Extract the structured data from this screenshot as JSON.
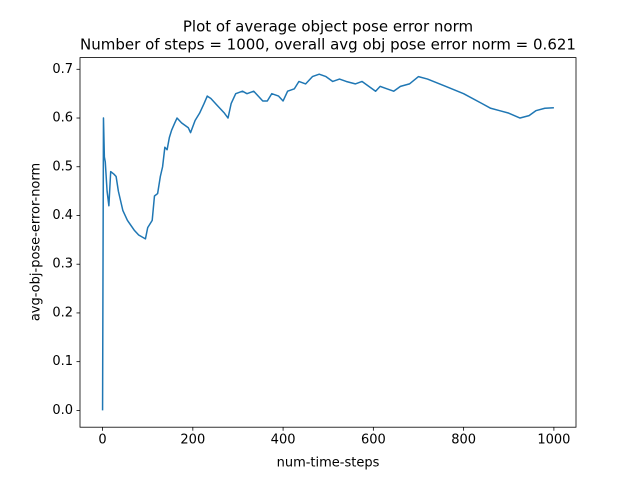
{
  "chart_data": {
    "type": "line",
    "title": "Plot of average object pose error norm",
    "subtitle": "Number of steps = 1000, overall avg obj pose error norm = 0.621",
    "x_label": "num-time-steps",
    "y_label": "avg-obj-pose-error-norm",
    "x": [
      0,
      2,
      4,
      6,
      10,
      14,
      18,
      25,
      30,
      35,
      45,
      55,
      70,
      80,
      95,
      100,
      110,
      115,
      122,
      128,
      133,
      138,
      143,
      148,
      153,
      160,
      165,
      175,
      190,
      195,
      205,
      215,
      225,
      232,
      240,
      255,
      270,
      278,
      285,
      295,
      310,
      320,
      335,
      345,
      355,
      365,
      375,
      390,
      400,
      410,
      425,
      435,
      450,
      465,
      480,
      495,
      510,
      525,
      540,
      560,
      575,
      590,
      605,
      615,
      630,
      645,
      660,
      680,
      700,
      720,
      760,
      800,
      840,
      860,
      880,
      900,
      925,
      945,
      960,
      980,
      1000
    ],
    "series": [
      {
        "name": "avg-obj-pose-error-norm",
        "color": "#1f77b4",
        "values": [
          0.0,
          0.6,
          0.52,
          0.51,
          0.45,
          0.42,
          0.49,
          0.485,
          0.48,
          0.45,
          0.41,
          0.39,
          0.37,
          0.36,
          0.352,
          0.375,
          0.39,
          0.44,
          0.445,
          0.48,
          0.5,
          0.54,
          0.535,
          0.56,
          0.575,
          0.59,
          0.6,
          0.59,
          0.58,
          0.57,
          0.595,
          0.61,
          0.63,
          0.645,
          0.64,
          0.625,
          0.61,
          0.6,
          0.63,
          0.65,
          0.655,
          0.65,
          0.655,
          0.645,
          0.635,
          0.635,
          0.65,
          0.645,
          0.635,
          0.655,
          0.66,
          0.675,
          0.67,
          0.685,
          0.69,
          0.685,
          0.675,
          0.68,
          0.675,
          0.67,
          0.675,
          0.665,
          0.655,
          0.665,
          0.66,
          0.655,
          0.665,
          0.67,
          0.685,
          0.68,
          0.665,
          0.65,
          0.63,
          0.62,
          0.615,
          0.61,
          0.6,
          0.605,
          0.615,
          0.62,
          0.621
        ]
      }
    ],
    "xlim": [
      -50,
      1049
    ],
    "ylim": [
      -0.0345,
      0.724
    ],
    "xticks": [
      0,
      200,
      400,
      600,
      800,
      1000
    ],
    "yticks": [
      {
        "value": 0,
        "label": "0.0"
      },
      {
        "value": 0.1,
        "label": "0.1"
      },
      {
        "value": 0.2,
        "label": "0.2"
      },
      {
        "value": 0.3,
        "label": "0.3"
      },
      {
        "value": 0.4,
        "label": "0.4"
      },
      {
        "value": 0.5,
        "label": "0.5"
      },
      {
        "value": 0.6,
        "label": "0.6"
      },
      {
        "value": 0.7,
        "label": "0.7"
      }
    ],
    "grid": false
  }
}
